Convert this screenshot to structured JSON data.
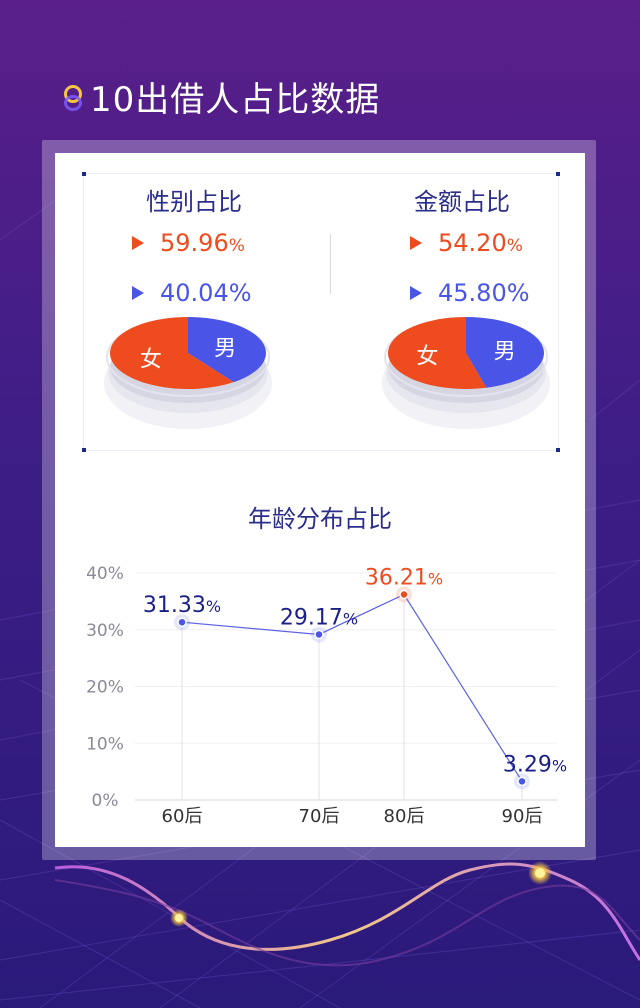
{
  "header": {
    "title": "10出借人占比数据"
  },
  "gender": {
    "title": "性别占比",
    "female_value": "59.96",
    "male_value": "40.04",
    "unit": "%",
    "female_label": "女",
    "male_label": "男"
  },
  "amount": {
    "title": "金额占比",
    "female_value": "54.20",
    "male_value": "45.80",
    "unit": "%",
    "female_label": "女",
    "male_label": "男"
  },
  "colors": {
    "female": "#ee4b1f",
    "male": "#4a55e8",
    "navy": "#1c1f86",
    "accent": "#ee4b1f"
  },
  "chart_data": [
    {
      "type": "pie",
      "title": "性别占比",
      "slices": [
        {
          "name": "女",
          "value": 59.96
        },
        {
          "name": "男",
          "value": 40.04
        }
      ]
    },
    {
      "type": "pie",
      "title": "金额占比",
      "slices": [
        {
          "name": "女",
          "value": 54.2
        },
        {
          "name": "男",
          "value": 45.8
        }
      ]
    },
    {
      "type": "line",
      "title": "年龄分布占比",
      "categories": [
        "60后",
        "70后",
        "80后",
        "90后"
      ],
      "values": [
        31.33,
        29.17,
        36.21,
        3.29
      ],
      "value_labels": [
        "31.33",
        "29.17",
        "36.21",
        "3.29"
      ],
      "unit": "%",
      "highlight_index": 2,
      "y_ticks": [
        "40%",
        "30%",
        "20%",
        "10%",
        "0%"
      ],
      "ylim": [
        0,
        40
      ],
      "grid": true
    }
  ]
}
